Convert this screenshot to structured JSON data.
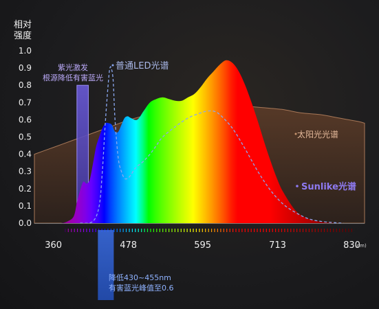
{
  "chart_data": {
    "type": "area",
    "ylabel": [
      "相对",
      "强度"
    ],
    "x_unit": "(nm)",
    "xlim": [
      330,
      850
    ],
    "ylim": [
      0,
      1.0
    ],
    "y_ticks": [
      "0.0",
      "0.1",
      "0.2",
      "0.3",
      "0.4",
      "0.5",
      "0.6",
      "0.7",
      "0.8",
      "0.9",
      "1.0"
    ],
    "x_ticks": [
      360,
      478,
      595,
      713,
      830
    ],
    "series": [
      {
        "name": "Sunlike光谱",
        "x": [
          372,
          382,
          392,
          397,
          402,
          407,
          412,
          417,
          422,
          427,
          432,
          437,
          442,
          447,
          452,
          457,
          462,
          467,
          472,
          477,
          482,
          492,
          502,
          512,
          522,
          532,
          542,
          552,
          562,
          572,
          582,
          592,
          602,
          612,
          622,
          632,
          642,
          652,
          662,
          672,
          682,
          692,
          702,
          712,
          722,
          742,
          762,
          782,
          802,
          817
        ],
        "y": [
          0.0,
          0.01,
          0.04,
          0.12,
          0.19,
          0.24,
          0.23,
          0.25,
          0.34,
          0.44,
          0.5,
          0.55,
          0.58,
          0.58,
          0.57,
          0.53,
          0.53,
          0.57,
          0.61,
          0.62,
          0.61,
          0.6,
          0.65,
          0.7,
          0.72,
          0.73,
          0.72,
          0.71,
          0.71,
          0.73,
          0.75,
          0.79,
          0.84,
          0.88,
          0.92,
          0.945,
          0.93,
          0.88,
          0.8,
          0.7,
          0.59,
          0.47,
          0.36,
          0.26,
          0.18,
          0.07,
          0.025,
          0.008,
          0.002,
          0.0
        ]
      },
      {
        "name": "普通LED光谱",
        "x": [
          402,
          422,
          432,
          437,
          442,
          447,
          449,
          451,
          454,
          457,
          462,
          467,
          472,
          477,
          482,
          487,
          492,
          502,
          512,
          522,
          532,
          552,
          572,
          592,
          602,
          612,
          622,
          642,
          662,
          682,
          702,
          722,
          742,
          762,
          782,
          802,
          817
        ],
        "y": [
          0.0,
          0.01,
          0.1,
          0.3,
          0.6,
          0.84,
          0.9,
          0.9,
          0.83,
          0.6,
          0.38,
          0.3,
          0.26,
          0.26,
          0.28,
          0.31,
          0.33,
          0.36,
          0.4,
          0.45,
          0.5,
          0.56,
          0.61,
          0.64,
          0.65,
          0.65,
          0.63,
          0.55,
          0.43,
          0.3,
          0.19,
          0.11,
          0.06,
          0.025,
          0.01,
          0.003,
          0.0
        ]
      },
      {
        "name": "太阳光光谱",
        "x": [
          330,
          360,
          390,
          420,
          450,
          480,
          510,
          540,
          570,
          600,
          630,
          660,
          690,
          720,
          750,
          780,
          810,
          840,
          850
        ],
        "y": [
          0.4,
          0.44,
          0.48,
          0.52,
          0.56,
          0.6,
          0.63,
          0.66,
          0.68,
          0.69,
          0.69,
          0.68,
          0.67,
          0.66,
          0.64,
          0.63,
          0.61,
          0.59,
          0.58
        ]
      }
    ],
    "annotations": {
      "violet": {
        "text": [
          "紫光激发",
          "根源降低有害蓝光"
        ],
        "x_range": [
          397,
          415
        ],
        "y_top": 0.8
      },
      "blue": {
        "text": [
          "降低430~455nm",
          "有害蓝光峰值至0.6"
        ],
        "x_range": [
          430,
          455
        ]
      }
    }
  },
  "colors": {
    "violet_band": "#5b50c8",
    "blue_band": "#2d5fd8",
    "led_line": "#8aa8f0",
    "sunlight_fill": "#4a3224",
    "sunlight_edge": "#a87858",
    "sunlike_label": "#8e7af0"
  }
}
